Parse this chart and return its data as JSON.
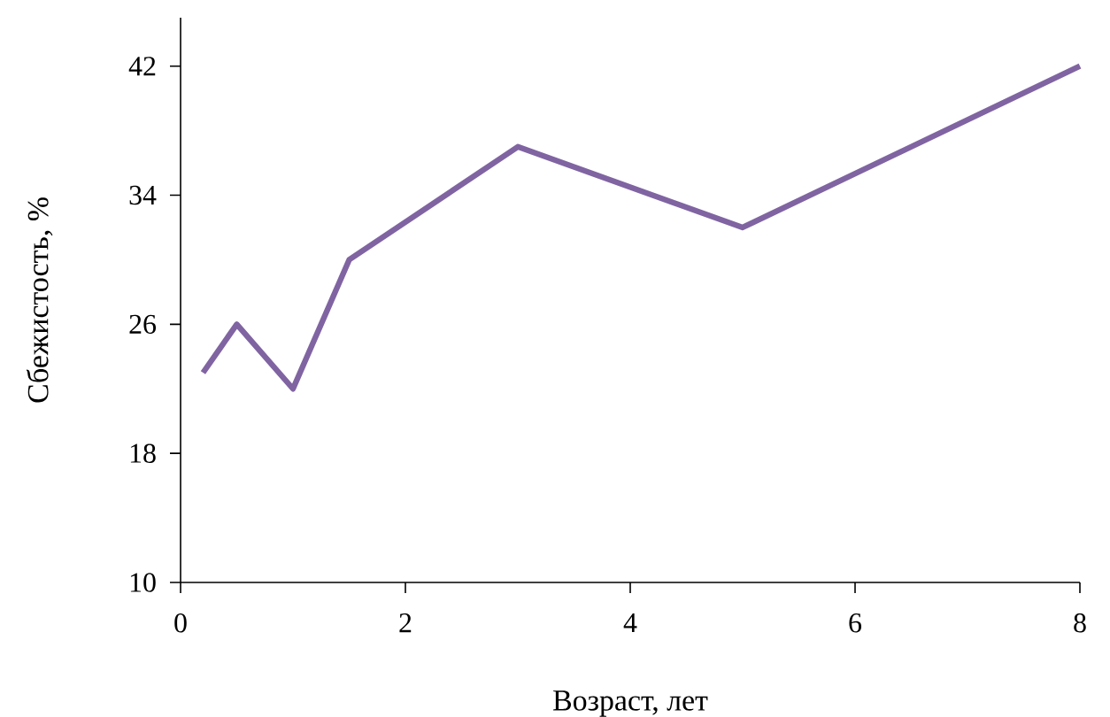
{
  "chart_data": {
    "type": "line",
    "xlabel": "Возраст, лет",
    "ylabel": "Сбежистость, %",
    "x": [
      0.2,
      0.5,
      1,
      1.5,
      3,
      5,
      8
    ],
    "series": [
      {
        "color": "#8064a2",
        "values": [
          23,
          26,
          22,
          30,
          37,
          32,
          42
        ]
      }
    ],
    "xlim": [
      0,
      8
    ],
    "xticks": [
      0,
      2,
      4,
      6,
      8
    ],
    "ylim": [
      10,
      45
    ],
    "yticks": [
      10,
      18,
      26,
      34,
      42
    ],
    "grid": false,
    "marker": "none",
    "line_style": "solid"
  }
}
